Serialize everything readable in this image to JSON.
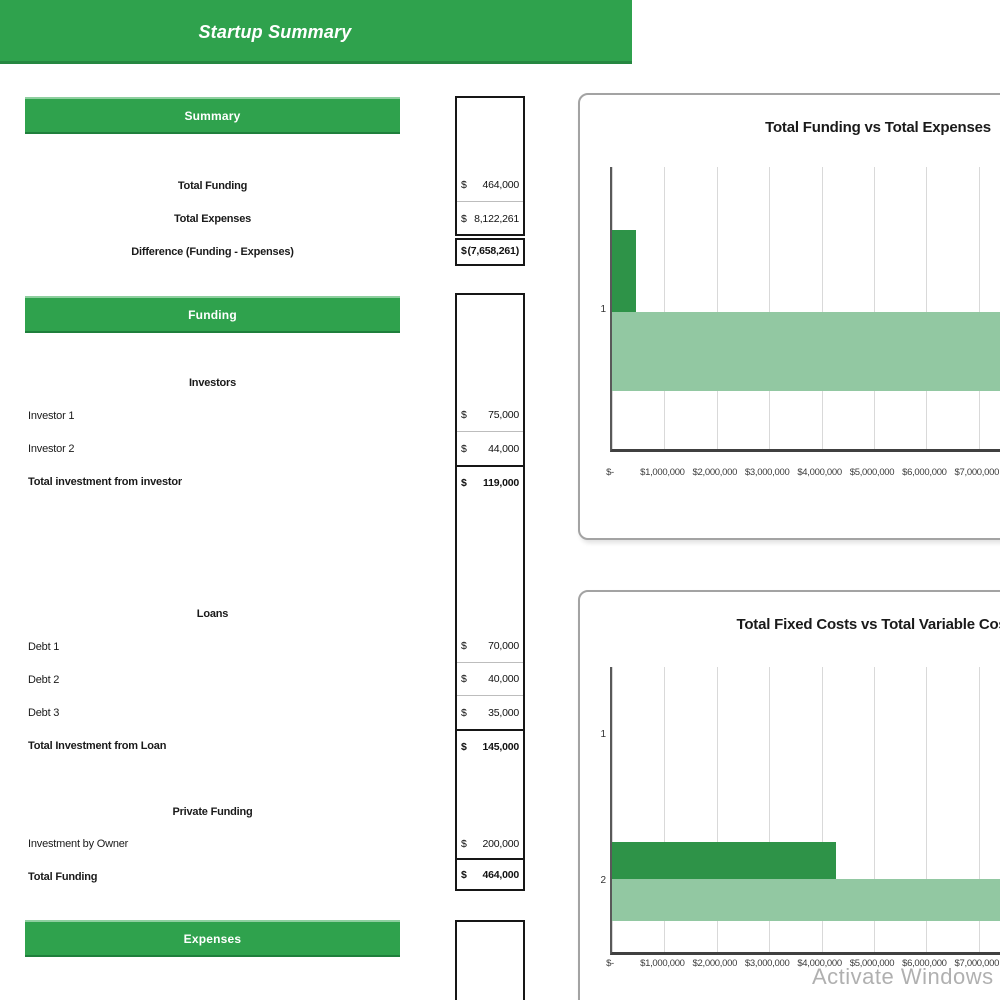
{
  "banner": {
    "title": "Startup Summary"
  },
  "colors": {
    "green": "#2FA24D",
    "bar_dark": "#2E9348",
    "bar_light": "#92C8A2"
  },
  "summary": {
    "header": "Summary",
    "rows": [
      {
        "label": "Total Funding",
        "cur": "$",
        "val": "464,000"
      },
      {
        "label": "Total Expenses",
        "cur": "$",
        "val": "8,122,261"
      }
    ],
    "difference": {
      "label": "Difference (Funding - Expenses)",
      "cur": "$",
      "val": "(7,658,261)"
    }
  },
  "funding": {
    "header": "Funding",
    "investors": {
      "subheader": "Investors",
      "rows": [
        {
          "label": "Investor 1",
          "cur": "$",
          "val": "75,000"
        },
        {
          "label": "Investor 2",
          "cur": "$",
          "val": "44,000"
        }
      ],
      "total": {
        "label": "Total investment from investor",
        "cur": "$",
        "val": "119,000"
      }
    },
    "loans": {
      "subheader": "Loans",
      "rows": [
        {
          "label": "Debt 1",
          "cur": "$",
          "val": "70,000"
        },
        {
          "label": "Debt 2",
          "cur": "$",
          "val": "40,000"
        },
        {
          "label": "Debt 3",
          "cur": "$",
          "val": "35,000"
        }
      ],
      "total": {
        "label": "Total Investment from Loan",
        "cur": "$",
        "val": "145,000"
      }
    },
    "private": {
      "subheader": "Private Funding",
      "rows": [
        {
          "label": "Investment by Owner",
          "cur": "$",
          "val": "200,000"
        }
      ],
      "total": {
        "label": "Total Funding",
        "cur": "$",
        "val": "464,000"
      }
    }
  },
  "expenses": {
    "header": "Expenses"
  },
  "watermark": "Activate Windows",
  "chart_data": [
    {
      "type": "bar",
      "orientation": "horizontal",
      "title": "Total Funding vs Total Expenses",
      "categories": [
        "1"
      ],
      "series": [
        {
          "name": "Total Funding",
          "values": [
            464000
          ]
        },
        {
          "name": "Total Expenses",
          "values": [
            8122261
          ]
        }
      ],
      "colors": [
        "#2E9348",
        "#92C8A2"
      ],
      "xlim": [
        0,
        8000000
      ],
      "tick_labels": [
        "$-",
        "$1,000,000",
        "$2,000,000",
        "$3,000,000",
        "$4,000,000",
        "$5,000,000",
        "$6,000,000",
        "$7,000,000"
      ],
      "grid": true,
      "legend": "none",
      "note": "Total Expenses bar clipped at right edge of screenshot"
    },
    {
      "type": "bar",
      "orientation": "horizontal",
      "title": "Total Fixed Costs vs Total Variable Costs",
      "categories": [
        "1",
        "2"
      ],
      "series": [
        {
          "name": "Total Fixed Costs",
          "values": [
            0,
            4270000
          ]
        },
        {
          "name": "Total Variable Costs",
          "values": [
            0,
            8000000
          ]
        }
      ],
      "colors": [
        "#2E9348",
        "#92C8A2"
      ],
      "xlim": [
        0,
        8000000
      ],
      "tick_labels": [
        "$-",
        "$1,000,000",
        "$2,000,000",
        "$3,000,000",
        "$4,000,000",
        "$5,000,000",
        "$6,000,000",
        "$7,000,000"
      ],
      "grid": true,
      "legend": "none",
      "note": "Values estimated from gridlines; variable-costs bar clipped at right edge of screenshot"
    }
  ]
}
